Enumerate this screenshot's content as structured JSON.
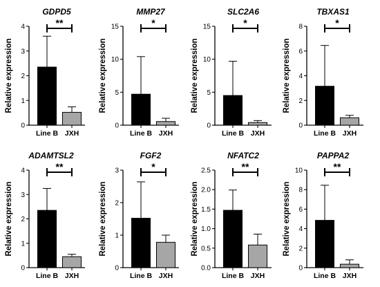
{
  "chart_data": [
    {
      "type": "bar",
      "title": "GDPD5",
      "ylabel": "Relative expression",
      "categories": [
        "Line B",
        "JXH"
      ],
      "values": [
        2.35,
        0.52
      ],
      "errors": [
        1.25,
        0.22
      ],
      "ylim": [
        0,
        4
      ],
      "yticks": [
        "0",
        "1",
        "2",
        "3",
        "4"
      ],
      "significance": "**",
      "colors": [
        "#000000",
        "#a6a6a6"
      ]
    },
    {
      "type": "bar",
      "title": "MMP27",
      "ylabel": "Relative expression",
      "categories": [
        "Line B",
        "JXH"
      ],
      "values": [
        4.7,
        0.55
      ],
      "errors": [
        5.7,
        0.5
      ],
      "ylim": [
        0,
        15
      ],
      "yticks": [
        "0",
        "5",
        "10",
        "15"
      ],
      "significance": "*",
      "colors": [
        "#000000",
        "#a6a6a6"
      ]
    },
    {
      "type": "bar",
      "title": "SLC2A6",
      "ylabel": "Relative expression",
      "categories": [
        "Line B",
        "JXH"
      ],
      "values": [
        4.5,
        0.4
      ],
      "errors": [
        5.2,
        0.3
      ],
      "ylim": [
        0,
        15
      ],
      "yticks": [
        "0",
        "5",
        "10",
        "15"
      ],
      "significance": "*",
      "colors": [
        "#000000",
        "#a6a6a6"
      ]
    },
    {
      "type": "bar",
      "title": "TBXAS1",
      "ylabel": "Relative expression",
      "categories": [
        "Line B",
        "JXH"
      ],
      "values": [
        3.15,
        0.6
      ],
      "errors": [
        3.3,
        0.2
      ],
      "ylim": [
        0,
        8
      ],
      "yticks": [
        "0",
        "2",
        "4",
        "6",
        "8"
      ],
      "significance": "*",
      "colors": [
        "#000000",
        "#a6a6a6"
      ]
    },
    {
      "type": "bar",
      "title": "ADAMTSL2",
      "ylabel": "Relative expression",
      "categories": [
        "Line B",
        "JXH"
      ],
      "values": [
        2.35,
        0.45
      ],
      "errors": [
        0.9,
        0.1
      ],
      "ylim": [
        0,
        4
      ],
      "yticks": [
        "0",
        "1",
        "2",
        "3",
        "4"
      ],
      "significance": "**",
      "colors": [
        "#000000",
        "#a6a6a6"
      ]
    },
    {
      "type": "bar",
      "title": "FGF2",
      "ylabel": "Relative expression",
      "categories": [
        "Line B",
        "JXH"
      ],
      "values": [
        1.52,
        0.78
      ],
      "errors": [
        1.12,
        0.22
      ],
      "ylim": [
        0,
        3
      ],
      "yticks": [
        "0",
        "1",
        "2",
        "3"
      ],
      "significance": "*",
      "colors": [
        "#000000",
        "#a6a6a6"
      ]
    },
    {
      "type": "bar",
      "title": "NFATC2",
      "ylabel": "Relative expression",
      "categories": [
        "Line B",
        "JXH"
      ],
      "values": [
        1.47,
        0.58
      ],
      "errors": [
        0.52,
        0.28
      ],
      "ylim": [
        0,
        2.5
      ],
      "yticks": [
        "0.0",
        "0.5",
        "1.0",
        "1.5",
        "2.0",
        "2.5"
      ],
      "significance": "**",
      "colors": [
        "#000000",
        "#a6a6a6"
      ]
    },
    {
      "type": "bar",
      "title": "PAPPA2",
      "ylabel": "Relative expression",
      "categories": [
        "Line B",
        "JXH"
      ],
      "values": [
        4.85,
        0.35
      ],
      "errors": [
        3.6,
        0.45
      ],
      "ylim": [
        0,
        10
      ],
      "yticks": [
        "0",
        "2",
        "4",
        "6",
        "8",
        "10"
      ],
      "significance": "**",
      "colors": [
        "#000000",
        "#a6a6a6"
      ]
    }
  ]
}
